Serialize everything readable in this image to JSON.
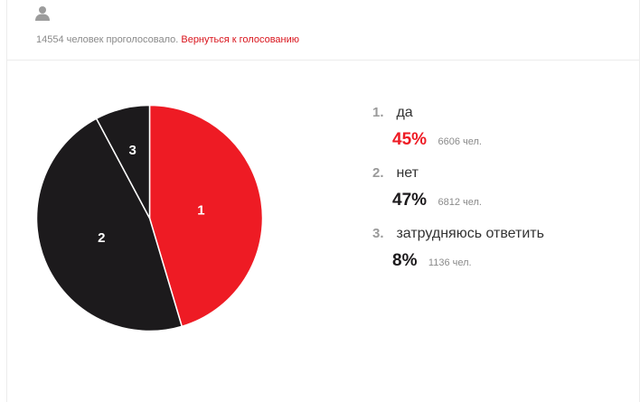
{
  "header": {
    "user_icon": "user-icon",
    "votes_text": "14554 человек проголосовало.",
    "back_link": "Вернуться к голосованию"
  },
  "colors": {
    "accent": "#ee1b24",
    "dark": "#1c1a1c",
    "muted": "#8a8a8a"
  },
  "chart_data": {
    "type": "pie",
    "title": "",
    "total": 14554,
    "slices": [
      {
        "label": "1",
        "name": "да",
        "percent_label": "45%",
        "count_label": "6606 чел.",
        "value": 6606,
        "color": "#ee1b24"
      },
      {
        "label": "2",
        "name": "нет",
        "percent_label": "47%",
        "count_label": "6812 чел.",
        "value": 6812,
        "color": "#1c1a1c"
      },
      {
        "label": "3",
        "name": "затрудняюсь ответить",
        "percent_label": "8%",
        "count_label": "1136 чел.",
        "value": 1136,
        "color": "#1c1a1c"
      }
    ]
  },
  "legend": [
    {
      "num": "1.",
      "label": "да",
      "percent": "45%",
      "count": "6606 чел."
    },
    {
      "num": "2.",
      "label": "нет",
      "percent": "47%",
      "count": "6812 чел."
    },
    {
      "num": "3.",
      "label": "затрудняюсь ответить",
      "percent": "8%",
      "count": "1136 чел."
    }
  ]
}
